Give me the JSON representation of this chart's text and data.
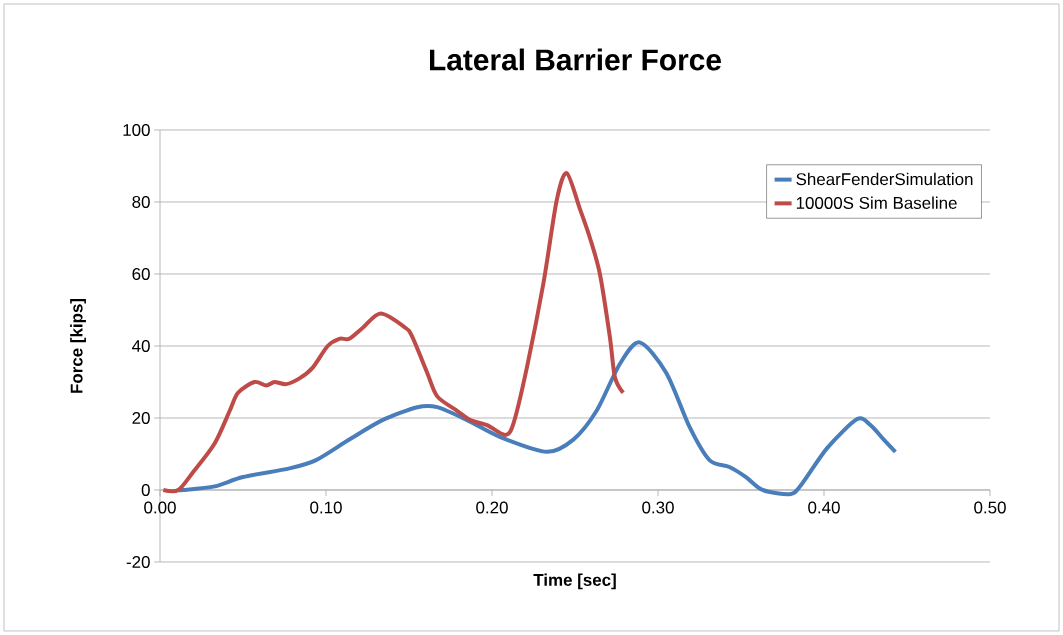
{
  "chart_data": {
    "type": "line",
    "title": "Lateral Barrier Force",
    "xlabel": "Time [sec]",
    "ylabel": "Force [kips]",
    "xlim": [
      0,
      0.5
    ],
    "ylim": [
      -20,
      100
    ],
    "xticks": [
      {
        "value": 0,
        "label": "0.00"
      },
      {
        "value": 0.1,
        "label": "0.10"
      },
      {
        "value": 0.2,
        "label": "0.20"
      },
      {
        "value": 0.3,
        "label": "0.30"
      },
      {
        "value": 0.4,
        "label": "0.40"
      },
      {
        "value": 0.5,
        "label": "0.50"
      }
    ],
    "yticks": [
      -20,
      0,
      20,
      40,
      60,
      80,
      100
    ],
    "grid": "y",
    "legend": "top right",
    "marker": "none",
    "line_style": "solid",
    "series": [
      {
        "name": "ShearFenderSimulation",
        "color": "#4a7ebb",
        "x": [
          0.01,
          0.014,
          0.033,
          0.05,
          0.078,
          0.094,
          0.114,
          0.134,
          0.155,
          0.167,
          0.185,
          0.205,
          0.233,
          0.249,
          0.263,
          0.277,
          0.289,
          0.305,
          0.319,
          0.331,
          0.343,
          0.353,
          0.363,
          0.38,
          0.387,
          0.402,
          0.42,
          0.428,
          0.436,
          0.443
        ],
        "values": [
          0,
          0,
          1,
          3.6,
          6,
          8.3,
          14,
          19.4,
          23,
          23,
          19.4,
          14.7,
          10.6,
          14,
          22,
          35,
          41,
          32.5,
          17.5,
          8.3,
          6.4,
          3.6,
          0,
          -1.1,
          1.9,
          11.7,
          19.7,
          18,
          14,
          10.6
        ]
      },
      {
        "name": "10000S Sim Baseline",
        "color": "#be4b48",
        "x": [
          0.002,
          0.011,
          0.02,
          0.033,
          0.042,
          0.047,
          0.057,
          0.064,
          0.069,
          0.076,
          0.084,
          0.092,
          0.101,
          0.108,
          0.114,
          0.122,
          0.133,
          0.148,
          0.152,
          0.161,
          0.167,
          0.179,
          0.187,
          0.197,
          0.208,
          0.213,
          0.221,
          0.231,
          0.239,
          0.245,
          0.253,
          0.259,
          0.265,
          0.271,
          0.274,
          0.279
        ],
        "values": [
          0,
          0,
          5,
          13,
          22,
          27,
          30,
          29,
          30,
          29.4,
          31,
          34,
          40,
          42,
          42,
          45,
          49,
          45,
          42.5,
          32.5,
          26,
          22,
          19.4,
          18,
          15.3,
          18.6,
          34,
          57.5,
          80.5,
          88,
          78,
          70,
          60,
          42.5,
          31.4,
          27
        ]
      }
    ]
  }
}
